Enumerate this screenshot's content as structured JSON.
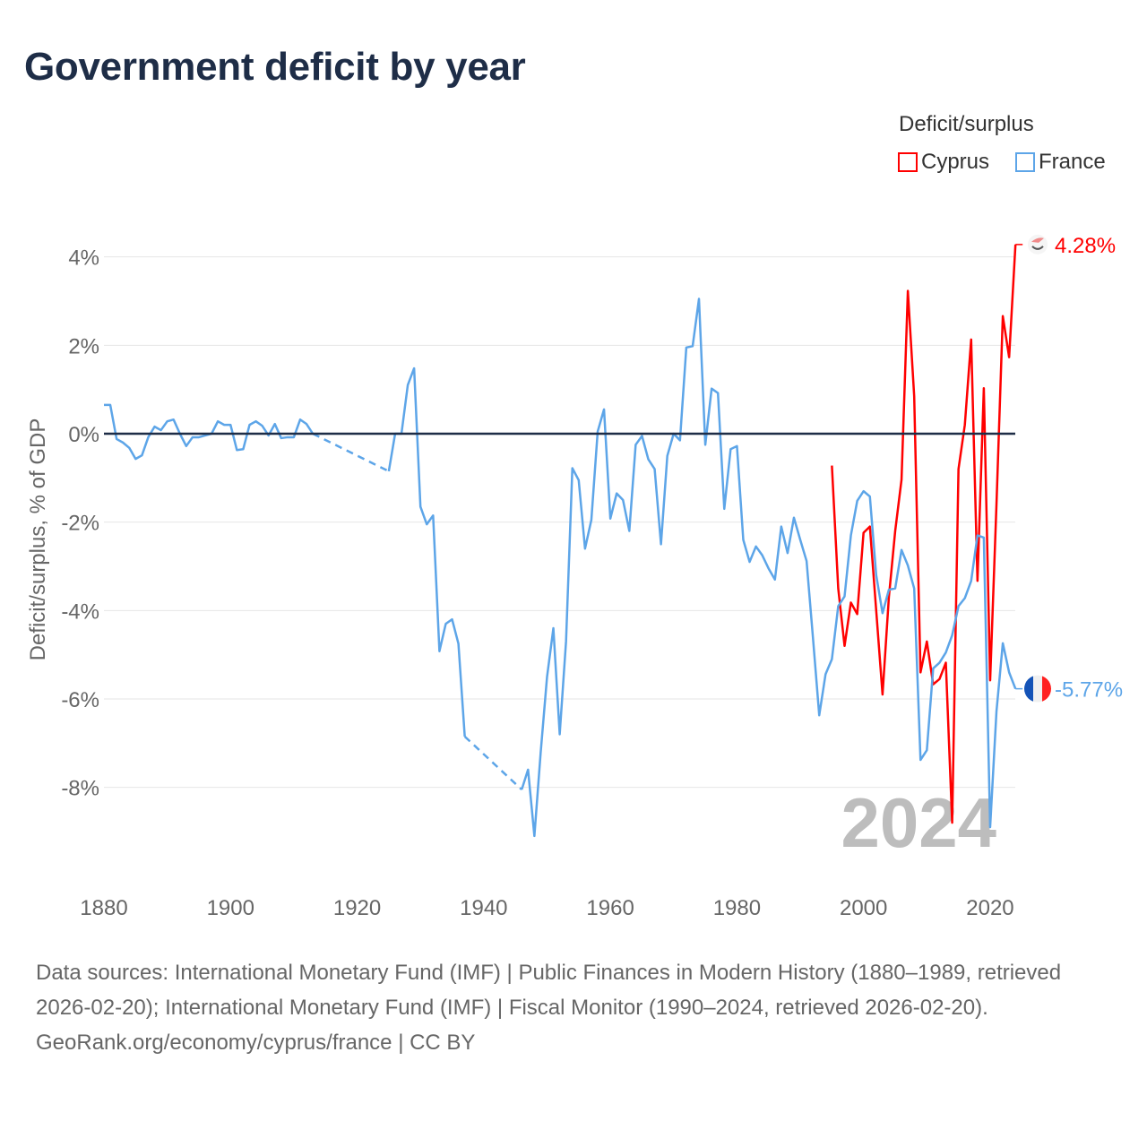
{
  "title": "Government deficit by year",
  "legend": {
    "title": "Deficit/surplus",
    "items": [
      {
        "label": "Cyprus",
        "color": "#ff0000"
      },
      {
        "label": "France",
        "color": "#5da5e8"
      }
    ]
  },
  "chart_data": {
    "type": "line",
    "title": "Government deficit by year",
    "xlabel": "",
    "ylabel": "Deficit/surplus, % of GDP",
    "xlim": [
      1880,
      2024
    ],
    "ylim": [
      -10,
      4.5
    ],
    "x_ticks": [
      1880,
      1900,
      1920,
      1940,
      1960,
      1980,
      2000,
      2020
    ],
    "x_tick_labels": [
      "1880",
      "1900",
      "1920",
      "1940",
      "1960",
      "1980",
      "2000",
      "2020"
    ],
    "y_ticks": [
      4,
      2,
      0,
      -2,
      -4,
      -6,
      -8
    ],
    "y_tick_labels": [
      "4%",
      "2%",
      "0%",
      "-2%",
      "-4%",
      "-6%",
      "-8%"
    ],
    "grid": true,
    "legend_position": "top-right",
    "current_year": "2024",
    "series": [
      {
        "name": "Cyprus",
        "color": "#ff0000",
        "end_label": "4.28%",
        "points": [
          [
            1995,
            -0.72
          ],
          [
            1996,
            -3.5
          ],
          [
            1997,
            -4.8
          ],
          [
            1998,
            -3.82
          ],
          [
            1999,
            -4.08
          ],
          [
            2000,
            -2.24
          ],
          [
            2001,
            -2.1
          ],
          [
            2002,
            -4.0
          ],
          [
            2003,
            -5.9
          ],
          [
            2004,
            -3.7
          ],
          [
            2005,
            -2.2
          ],
          [
            2006,
            -1.04
          ],
          [
            2007,
            3.23
          ],
          [
            2008,
            0.85
          ],
          [
            2009,
            -5.4
          ],
          [
            2010,
            -4.7
          ],
          [
            2011,
            -5.67
          ],
          [
            2012,
            -5.55
          ],
          [
            2013,
            -5.18
          ],
          [
            2014,
            -8.8
          ],
          [
            2015,
            -0.8
          ],
          [
            2016,
            0.2
          ],
          [
            2017,
            2.13
          ],
          [
            2018,
            -3.33
          ],
          [
            2019,
            1.03
          ],
          [
            2020,
            -5.58
          ],
          [
            2021,
            -1.6
          ],
          [
            2022,
            2.66
          ],
          [
            2023,
            1.73
          ],
          [
            2024,
            4.28
          ]
        ]
      },
      {
        "name": "France",
        "color": "#5da5e8",
        "end_label": "-5.77%",
        "points": [
          [
            1880,
            0.65
          ],
          [
            1881,
            0.65
          ],
          [
            1882,
            -0.12
          ],
          [
            1883,
            -0.2
          ],
          [
            1884,
            -0.32
          ],
          [
            1885,
            -0.57
          ],
          [
            1886,
            -0.49
          ],
          [
            1887,
            -0.08
          ],
          [
            1888,
            0.16
          ],
          [
            1889,
            0.08
          ],
          [
            1890,
            0.28
          ],
          [
            1891,
            0.32
          ],
          [
            1892,
            0
          ],
          [
            1893,
            -0.28
          ],
          [
            1894,
            -0.08
          ],
          [
            1895,
            -0.08
          ],
          [
            1896,
            -0.04
          ],
          [
            1897,
            0
          ],
          [
            1898,
            0.28
          ],
          [
            1899,
            0.2
          ],
          [
            1900,
            0.2
          ],
          [
            1901,
            -0.37
          ],
          [
            1902,
            -0.35
          ],
          [
            1903,
            0.2
          ],
          [
            1904,
            0.28
          ],
          [
            1905,
            0.18
          ],
          [
            1906,
            -0.04
          ],
          [
            1907,
            0.22
          ],
          [
            1908,
            -0.1
          ],
          [
            1909,
            -0.08
          ],
          [
            1910,
            -0.08
          ],
          [
            1911,
            0.32
          ],
          [
            1912,
            0.22
          ],
          [
            1913,
            0.0
          ],
          [
            1925,
            -0.85
          ],
          [
            1926,
            0.0
          ],
          [
            1927,
            0.0
          ],
          [
            1928,
            1.1
          ],
          [
            1929,
            1.48
          ],
          [
            1930,
            -1.65
          ],
          [
            1931,
            -2.05
          ],
          [
            1932,
            -1.85
          ],
          [
            1933,
            -4.92
          ],
          [
            1934,
            -4.3
          ],
          [
            1935,
            -4.2
          ],
          [
            1936,
            -4.75
          ],
          [
            1937,
            -6.85
          ],
          [
            1946,
            -8.05
          ],
          [
            1947,
            -7.6
          ],
          [
            1948,
            -9.1
          ],
          [
            1949,
            -7.2
          ],
          [
            1950,
            -5.5
          ],
          [
            1951,
            -4.4
          ],
          [
            1952,
            -6.8
          ],
          [
            1953,
            -4.7
          ],
          [
            1954,
            -0.78
          ],
          [
            1955,
            -1.05
          ],
          [
            1956,
            -2.6
          ],
          [
            1957,
            -1.95
          ],
          [
            1958,
            0.05
          ],
          [
            1959,
            0.55
          ],
          [
            1960,
            -1.92
          ],
          [
            1961,
            -1.35
          ],
          [
            1962,
            -1.5
          ],
          [
            1963,
            -2.2
          ],
          [
            1964,
            -0.25
          ],
          [
            1965,
            -0.05
          ],
          [
            1966,
            -0.58
          ],
          [
            1967,
            -0.8
          ],
          [
            1968,
            -2.5
          ],
          [
            1969,
            -0.5
          ],
          [
            1970,
            0.0
          ],
          [
            1971,
            -0.15
          ],
          [
            1972,
            1.95
          ],
          [
            1973,
            1.98
          ],
          [
            1974,
            3.05
          ],
          [
            1975,
            -0.25
          ],
          [
            1976,
            1.02
          ],
          [
            1977,
            0.92
          ],
          [
            1978,
            -1.7
          ],
          [
            1979,
            -0.35
          ],
          [
            1980,
            -0.28
          ],
          [
            1981,
            -2.4
          ],
          [
            1982,
            -2.9
          ],
          [
            1983,
            -2.55
          ],
          [
            1984,
            -2.75
          ],
          [
            1985,
            -3.05
          ],
          [
            1986,
            -3.3
          ],
          [
            1987,
            -2.1
          ],
          [
            1988,
            -2.7
          ],
          [
            1989,
            -1.9
          ],
          [
            1990,
            -2.4
          ],
          [
            1991,
            -2.88
          ],
          [
            1992,
            -4.6
          ],
          [
            1993,
            -6.37
          ],
          [
            1994,
            -5.44
          ],
          [
            1995,
            -5.1
          ],
          [
            1996,
            -3.9
          ],
          [
            1997,
            -3.68
          ],
          [
            1998,
            -2.3
          ],
          [
            1999,
            -1.52
          ],
          [
            2000,
            -1.3
          ],
          [
            2001,
            -1.42
          ],
          [
            2002,
            -3.2
          ],
          [
            2003,
            -4.06
          ],
          [
            2004,
            -3.53
          ],
          [
            2005,
            -3.5
          ],
          [
            2006,
            -2.63
          ],
          [
            2007,
            -2.98
          ],
          [
            2008,
            -3.5
          ],
          [
            2009,
            -7.38
          ],
          [
            2010,
            -7.16
          ],
          [
            2011,
            -5.31
          ],
          [
            2012,
            -5.18
          ],
          [
            2013,
            -4.95
          ],
          [
            2014,
            -4.56
          ],
          [
            2015,
            -3.9
          ],
          [
            2016,
            -3.72
          ],
          [
            2017,
            -3.33
          ],
          [
            2018,
            -2.3
          ],
          [
            2019,
            -2.35
          ],
          [
            2020,
            -8.9
          ],
          [
            2021,
            -6.28
          ],
          [
            2022,
            -4.74
          ],
          [
            2023,
            -5.4
          ],
          [
            2024,
            -5.77
          ]
        ]
      }
    ]
  },
  "footer": {
    "sources": "Data sources: International Monetary Fund (IMF) | Public Finances in Modern History (1880–1989, retrieved 2026-02-20); International Monetary Fund (IMF) | Fiscal Monitor (1990–2024, retrieved 2026-02-20).",
    "credit": "GeoRank.org/economy/cyprus/france | CC BY"
  }
}
